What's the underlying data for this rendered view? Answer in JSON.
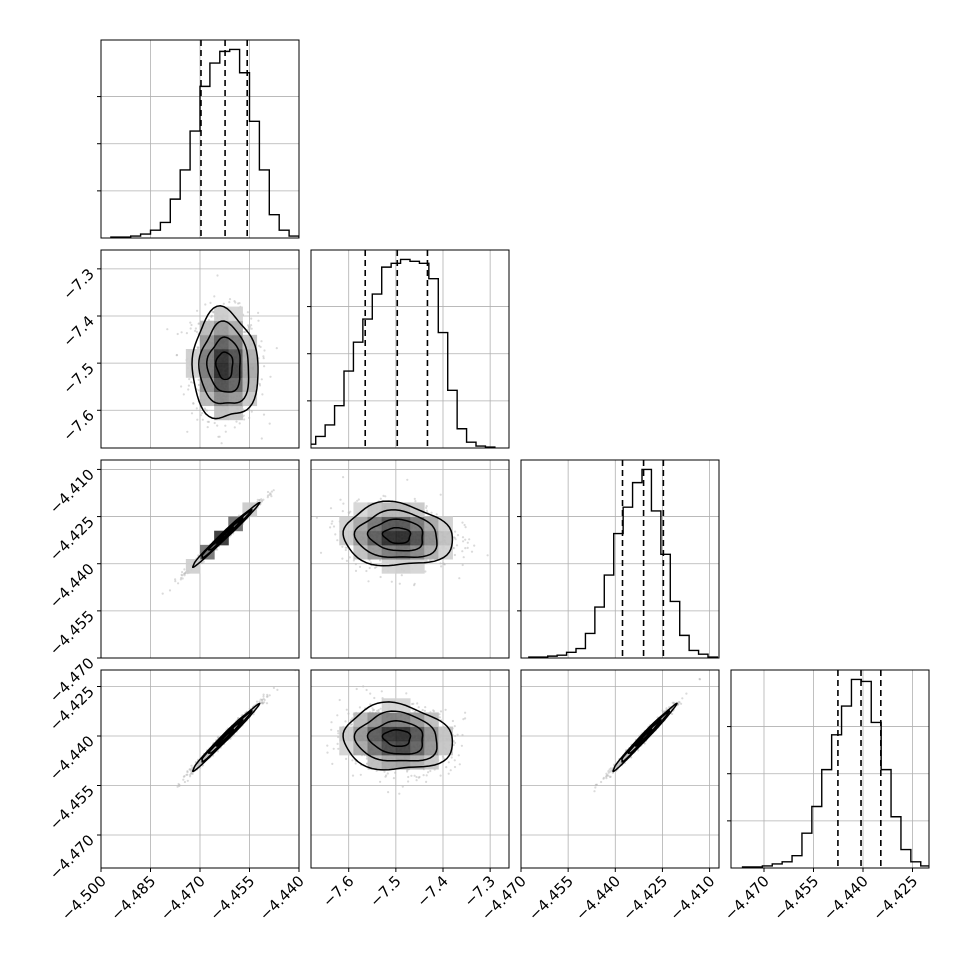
{
  "chart_data": {
    "type": "corner",
    "grid": true,
    "parameters": [
      {
        "index": 0,
        "range": [
          -4.5,
          -4.44
        ],
        "x_ticks": [
          -4.5,
          -4.485,
          -4.47,
          -4.455,
          -4.44
        ],
        "x_tick_labels": [
          "−4.500",
          "−4.485",
          "−4.470",
          "−4.455",
          "−4.440"
        ],
        "quantiles": [
          -4.4697,
          -4.4624,
          -4.4557
        ],
        "histogram": {
          "bin_edges": [
            -4.497,
            -4.494,
            -4.491,
            -4.488,
            -4.485,
            -4.482,
            -4.479,
            -4.476,
            -4.473,
            -4.47,
            -4.467,
            -4.464,
            -4.461,
            -4.458,
            -4.455,
            -4.452,
            -4.449,
            -4.446,
            -4.443,
            -4.44
          ],
          "counts": [
            0.5,
            0.5,
            1,
            2,
            4,
            8,
            20,
            35,
            55,
            78,
            90,
            96,
            97,
            85,
            60,
            35,
            12,
            4,
            1
          ]
        }
      },
      {
        "index": 1,
        "range": [
          -7.68,
          -7.26
        ],
        "x_ticks": [
          -7.6,
          -7.5,
          -7.4,
          -7.3
        ],
        "x_tick_labels": [
          "−7.6",
          "−7.5",
          "−7.4",
          "−7.3"
        ],
        "y_ticks": [
          -7.3,
          -7.4,
          -7.5,
          -7.6
        ],
        "y_tick_labels": [
          "−7.3",
          "−7.4",
          "−7.5",
          "−7.6"
        ],
        "quantiles": [
          -7.565,
          -7.497,
          -7.433
        ],
        "histogram": {
          "bin_edges": [
            -7.69,
            -7.67,
            -7.65,
            -7.63,
            -7.61,
            -7.59,
            -7.57,
            -7.55,
            -7.53,
            -7.51,
            -7.49,
            -7.47,
            -7.45,
            -7.43,
            -7.41,
            -7.39,
            -7.37,
            -7.35,
            -7.33,
            -7.31,
            -7.29
          ],
          "counts": [
            2,
            6,
            12,
            22,
            40,
            55,
            67,
            80,
            94,
            96,
            98,
            97,
            96,
            88,
            60,
            30,
            10,
            3,
            1,
            0.5
          ]
        }
      },
      {
        "index": 2,
        "range": [
          -4.47,
          -4.407
        ],
        "x_ticks": [
          -4.47,
          -4.455,
          -4.44,
          -4.425,
          -4.41
        ],
        "x_tick_labels": [
          "−4.470",
          "−4.455",
          "−4.440",
          "−4.425",
          "−4.410"
        ],
        "y_ticks": [
          -4.41,
          -4.425,
          -4.44,
          -4.455,
          -4.47
        ],
        "y_tick_labels": [
          "−4.410",
          "−4.425",
          "−4.440",
          "−4.455",
          "−4.470"
        ],
        "quantiles": [
          -4.4377,
          -4.431,
          -4.4247
        ],
        "histogram": {
          "bin_edges": [
            -4.4675,
            -4.4645,
            -4.4615,
            -4.4585,
            -4.4555,
            -4.4525,
            -4.4495,
            -4.4465,
            -4.4435,
            -4.4405,
            -4.4375,
            -4.4345,
            -4.4315,
            -4.4285,
            -4.4255,
            -4.4225,
            -4.4195,
            -4.4165,
            -4.4135,
            -4.4105,
            -4.4075
          ],
          "counts": [
            0.5,
            0.5,
            1,
            1.5,
            3,
            5,
            13,
            27,
            44,
            66,
            80,
            93,
            100,
            78,
            55,
            30,
            12,
            4,
            2,
            0.5
          ]
        }
      },
      {
        "index": 3,
        "range": [
          -4.48,
          -4.42
        ],
        "x_ticks": [
          -4.47,
          -4.455,
          -4.44,
          -4.425
        ],
        "x_tick_labels": [
          "−4.470",
          "−4.455",
          "−4.440",
          "−4.425"
        ],
        "y_ticks": [
          -4.425,
          -4.44,
          -4.455,
          -4.47
        ],
        "y_tick_labels": [
          "−4.425",
          "−4.440",
          "−4.455",
          "−4.470"
        ],
        "quantiles": [
          -4.4476,
          -4.4406,
          -4.4346
        ],
        "histogram": {
          "bin_edges": [
            -4.4765,
            -4.4735,
            -4.4705,
            -4.4675,
            -4.4645,
            -4.4615,
            -4.4585,
            -4.4555,
            -4.4525,
            -4.4495,
            -4.4465,
            -4.4435,
            -4.4405,
            -4.4375,
            -4.4345,
            -4.4315,
            -4.4285,
            -4.4255,
            -4.4225,
            -4.4195
          ],
          "counts": [
            0.5,
            0.5,
            1,
            2,
            3,
            6,
            17,
            30,
            48,
            65,
            79,
            92,
            91,
            71,
            48,
            25,
            9,
            3,
            1
          ]
        }
      }
    ],
    "joint_panels": [
      {
        "row": 1,
        "col": 0,
        "mean": [
          -4.4625,
          -7.505
        ],
        "std": [
          0.005,
          0.058
        ],
        "corr": -0.05
      },
      {
        "row": 2,
        "col": 0,
        "mean": [
          -4.4625,
          -4.431
        ],
        "std": [
          0.005,
          0.005
        ],
        "corr": 0.99
      },
      {
        "row": 2,
        "col": 1,
        "mean": [
          -7.497,
          -4.431
        ],
        "std": [
          0.058,
          0.005
        ],
        "corr": -0.08
      },
      {
        "row": 3,
        "col": 0,
        "mean": [
          -4.4625,
          -4.4406
        ],
        "std": [
          0.005,
          0.005
        ],
        "corr": 0.99
      },
      {
        "row": 3,
        "col": 1,
        "mean": [
          -7.497,
          -4.4406
        ],
        "std": [
          0.058,
          0.005
        ],
        "corr": -0.08
      },
      {
        "row": 3,
        "col": 2,
        "mean": [
          -4.431,
          -4.4406
        ],
        "std": [
          0.005,
          0.005
        ],
        "corr": 0.99
      }
    ],
    "contour_levels_sigma": [
      0.5,
      1.0,
      1.5,
      2.0
    ],
    "colors": {
      "points": "#bbbbbb",
      "density": "#000000",
      "lines": "#000000",
      "grid": "#b0b0b0"
    }
  }
}
